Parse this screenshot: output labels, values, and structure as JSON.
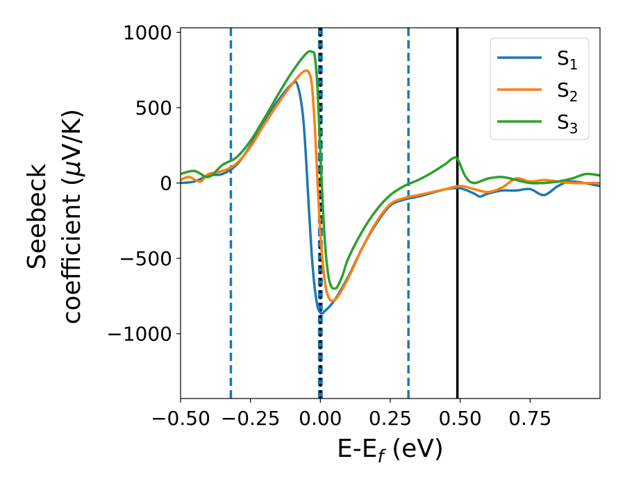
{
  "chart_data": {
    "type": "line",
    "xlabel": "E-E",
    "xlabel_sub": "f",
    "xlabel_unit": " (eV)",
    "ylabel_line1": "Seebeck",
    "ylabel_line2": "coefficient  (",
    "ylabel_mu": "μ",
    "ylabel_unit": "V/K)",
    "xlim": [
      -0.5,
      1.0
    ],
    "ylim": [
      -1430,
      1030
    ],
    "x_ticks": [
      -0.5,
      -0.25,
      0.0,
      0.25,
      0.5,
      0.75
    ],
    "x_tick_labels": [
      "−0.50",
      "−0.25",
      "0.00",
      "0.25",
      "0.50",
      "0.75"
    ],
    "y_ticks": [
      1000,
      500,
      0,
      -500,
      -1000
    ],
    "y_tick_labels": [
      "1000",
      "500",
      "0",
      "−500",
      "−1000"
    ],
    "grid": false,
    "legend_position": "top-right",
    "series": [
      {
        "name": "S",
        "name_sub": "1",
        "color": "#1f77b4",
        "x": [
          -0.5,
          -0.45,
          -0.4,
          -0.35,
          -0.3,
          -0.25,
          -0.2,
          -0.15,
          -0.1,
          -0.08,
          -0.06,
          -0.04,
          -0.03,
          -0.02,
          -0.01,
          0.0,
          0.01,
          0.05,
          0.1,
          0.15,
          0.2,
          0.25,
          0.3,
          0.35,
          0.4,
          0.45,
          0.5,
          0.55,
          0.57,
          0.6,
          0.65,
          0.7,
          0.75,
          0.8,
          0.85,
          0.9,
          1.0
        ],
        "y": [
          0,
          10,
          50,
          60,
          120,
          250,
          410,
          550,
          660,
          640,
          400,
          -200,
          -500,
          -700,
          -820,
          -860,
          -860,
          -780,
          -620,
          -430,
          -270,
          -150,
          -110,
          -90,
          -65,
          -40,
          -35,
          -70,
          -90,
          -70,
          -50,
          -50,
          -40,
          -80,
          -20,
          10,
          -20
        ]
      },
      {
        "name": "S",
        "name_sub": "2",
        "color": "#ff7f0e",
        "x": [
          -0.5,
          -0.47,
          -0.43,
          -0.4,
          -0.35,
          -0.3,
          -0.25,
          -0.2,
          -0.15,
          -0.1,
          -0.06,
          -0.04,
          -0.03,
          -0.02,
          -0.01,
          0.0,
          0.01,
          0.02,
          0.03,
          0.04,
          0.06,
          0.1,
          0.15,
          0.2,
          0.25,
          0.3,
          0.35,
          0.4,
          0.45,
          0.5,
          0.55,
          0.6,
          0.65,
          0.7,
          0.75,
          0.8,
          0.85,
          0.9,
          1.0
        ],
        "y": [
          20,
          40,
          10,
          60,
          80,
          130,
          240,
          390,
          530,
          660,
          740,
          730,
          640,
          380,
          0,
          -340,
          -560,
          -700,
          -760,
          -780,
          -760,
          -630,
          -430,
          -260,
          -140,
          -100,
          -80,
          -60,
          -40,
          -20,
          -40,
          -60,
          -30,
          30,
          10,
          20,
          10,
          0,
          0
        ]
      },
      {
        "name": "S",
        "name_sub": "3",
        "color": "#2ca02c",
        "x": [
          -0.5,
          -0.45,
          -0.4,
          -0.35,
          -0.3,
          -0.25,
          -0.2,
          -0.15,
          -0.1,
          -0.05,
          -0.03,
          -0.02,
          -0.01,
          0.0,
          0.01,
          0.02,
          0.03,
          0.04,
          0.05,
          0.06,
          0.08,
          0.1,
          0.15,
          0.2,
          0.25,
          0.3,
          0.35,
          0.4,
          0.45,
          0.47,
          0.49,
          0.52,
          0.55,
          0.6,
          0.65,
          0.7,
          0.75,
          0.8,
          0.85,
          0.9,
          0.95,
          1.0
        ],
        "y": [
          60,
          80,
          40,
          120,
          170,
          280,
          430,
          590,
          740,
          860,
          870,
          840,
          620,
          200,
          -200,
          -480,
          -630,
          -690,
          -700,
          -690,
          -610,
          -500,
          -320,
          -180,
          -80,
          -20,
          20,
          70,
          130,
          160,
          160,
          40,
          0,
          30,
          40,
          20,
          0,
          0,
          10,
          30,
          60,
          50
        ]
      }
    ],
    "vlines": [
      {
        "x": -0.32,
        "color": "#1f77b4",
        "style": "dashed"
      },
      {
        "x": 0.0,
        "color": "#1f77b4",
        "style": "dashed-thick"
      },
      {
        "x": 0.0,
        "color": "#000000",
        "style": "dotted"
      },
      {
        "x": 0.315,
        "color": "#1f77b4",
        "style": "dashed"
      },
      {
        "x": 0.49,
        "color": "#000000",
        "style": "solid"
      }
    ]
  }
}
